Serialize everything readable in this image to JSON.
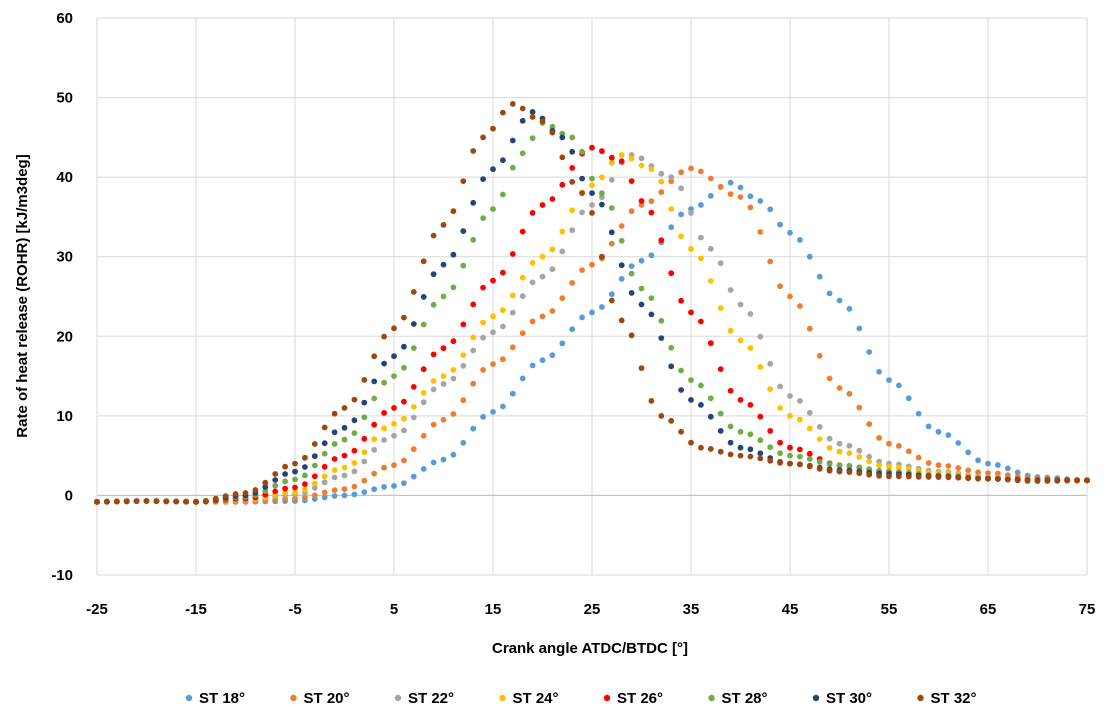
{
  "chart_data": {
    "type": "scatter",
    "title": "",
    "xlabel": "Crank angle ATDC/BTDC [°]",
    "ylabel": "Rate of heat release (ROHR) [kJ/m3deg]",
    "xlim": [
      -25,
      75
    ],
    "ylim": [
      -10,
      60
    ],
    "x_ticks": [
      -25,
      -15,
      -5,
      5,
      15,
      25,
      35,
      45,
      55,
      65,
      75
    ],
    "y_ticks": [
      -10,
      0,
      10,
      20,
      30,
      40,
      50,
      60
    ],
    "grid": "vertical and horizontal",
    "legend_position": "bottom",
    "series": [
      {
        "name": "ST 18°",
        "color": "#5b9bd5",
        "peak_x": 39,
        "peak_y": 39.3,
        "points": [
          [
            -25,
            -0.8
          ],
          [
            -20,
            -0.7
          ],
          [
            -15,
            -0.8
          ],
          [
            -10,
            -0.8
          ],
          [
            -5,
            -0.7
          ],
          [
            0,
            0
          ],
          [
            5,
            1.2
          ],
          [
            10,
            4.5
          ],
          [
            15,
            10.5
          ],
          [
            20,
            17
          ],
          [
            25,
            23
          ],
          [
            30,
            29.5
          ],
          [
            35,
            36
          ],
          [
            39,
            39.3
          ],
          [
            42,
            37
          ],
          [
            45,
            33
          ],
          [
            50,
            24.5
          ],
          [
            55,
            14.5
          ],
          [
            60,
            8
          ],
          [
            65,
            4
          ],
          [
            70,
            2.3
          ],
          [
            75,
            1.9
          ]
        ]
      },
      {
        "name": "ST 20°",
        "color": "#ed7d31",
        "peak_x": 35,
        "peak_y": 41.1,
        "points": [
          [
            -25,
            -0.8
          ],
          [
            -20,
            -0.7
          ],
          [
            -15,
            -0.8
          ],
          [
            -10,
            -0.8
          ],
          [
            -5,
            -0.4
          ],
          [
            0,
            0.8
          ],
          [
            5,
            3.8
          ],
          [
            10,
            9.5
          ],
          [
            15,
            16.5
          ],
          [
            20,
            22.5
          ],
          [
            25,
            29
          ],
          [
            30,
            36.5
          ],
          [
            35,
            41.1
          ],
          [
            40,
            37.5
          ],
          [
            45,
            25
          ],
          [
            50,
            13.5
          ],
          [
            55,
            6.5
          ],
          [
            60,
            3.8
          ],
          [
            65,
            2.8
          ],
          [
            70,
            2.1
          ],
          [
            75,
            1.9
          ]
        ]
      },
      {
        "name": "ST 22°",
        "color": "#a5a5a5",
        "peak_x": 29,
        "peak_y": 42.8,
        "points": [
          [
            -25,
            -0.8
          ],
          [
            -20,
            -0.7
          ],
          [
            -15,
            -0.8
          ],
          [
            -10,
            -0.6
          ],
          [
            -5,
            0.1
          ],
          [
            0,
            2.5
          ],
          [
            5,
            7.5
          ],
          [
            10,
            14
          ],
          [
            15,
            20.5
          ],
          [
            20,
            27.5
          ],
          [
            25,
            36.5
          ],
          [
            29,
            42.8
          ],
          [
            33,
            40
          ],
          [
            37,
            31
          ],
          [
            40,
            24
          ],
          [
            45,
            12.5
          ],
          [
            50,
            6.5
          ],
          [
            55,
            4
          ],
          [
            60,
            3
          ],
          [
            65,
            2.3
          ],
          [
            70,
            1.9
          ],
          [
            75,
            1.9
          ]
        ]
      },
      {
        "name": "ST 24°",
        "color": "#ffc000",
        "peak_x": 28,
        "peak_y": 42.8,
        "points": [
          [
            -25,
            -0.8
          ],
          [
            -20,
            -0.7
          ],
          [
            -15,
            -0.8
          ],
          [
            -10,
            -0.5
          ],
          [
            -5,
            0.4
          ],
          [
            0,
            3.5
          ],
          [
            5,
            9
          ],
          [
            10,
            15
          ],
          [
            15,
            22.5
          ],
          [
            20,
            30
          ],
          [
            25,
            39
          ],
          [
            28,
            42.8
          ],
          [
            31,
            41
          ],
          [
            35,
            31
          ],
          [
            40,
            19.5
          ],
          [
            45,
            10
          ],
          [
            50,
            5.5
          ],
          [
            55,
            3.6
          ],
          [
            60,
            2.8
          ],
          [
            65,
            2.2
          ],
          [
            70,
            1.9
          ],
          [
            75,
            1.9
          ]
        ]
      },
      {
        "name": "ST 26°",
        "color": "#ff0000",
        "peak_x": 25,
        "peak_y": 43.7,
        "points": [
          [
            -25,
            -0.8
          ],
          [
            -20,
            -0.7
          ],
          [
            -15,
            -0.8
          ],
          [
            -10,
            -0.4
          ],
          [
            -5,
            1
          ],
          [
            0,
            5
          ],
          [
            5,
            11
          ],
          [
            10,
            18.5
          ],
          [
            15,
            27
          ],
          [
            20,
            36.5
          ],
          [
            25,
            43.7
          ],
          [
            28,
            42
          ],
          [
            30,
            37
          ],
          [
            35,
            23
          ],
          [
            40,
            12
          ],
          [
            45,
            6
          ],
          [
            50,
            3.8
          ],
          [
            55,
            3
          ],
          [
            60,
            2.5
          ],
          [
            65,
            2.1
          ],
          [
            70,
            1.9
          ],
          [
            75,
            1.9
          ]
        ]
      },
      {
        "name": "ST 28°",
        "color": "#70ad47",
        "peak_x": 20,
        "peak_y": 46.8,
        "points": [
          [
            -25,
            -0.8
          ],
          [
            -20,
            -0.7
          ],
          [
            -15,
            -0.8
          ],
          [
            -10,
            -0.2
          ],
          [
            -5,
            2
          ],
          [
            0,
            7
          ],
          [
            5,
            15
          ],
          [
            10,
            25
          ],
          [
            15,
            36
          ],
          [
            18,
            43
          ],
          [
            20,
            46.8
          ],
          [
            23,
            45
          ],
          [
            26,
            38
          ],
          [
            30,
            26
          ],
          [
            35,
            14.5
          ],
          [
            40,
            8
          ],
          [
            45,
            5
          ],
          [
            50,
            3.8
          ],
          [
            55,
            3
          ],
          [
            60,
            2.5
          ],
          [
            65,
            2.1
          ],
          [
            70,
            1.9
          ],
          [
            75,
            1.9
          ]
        ]
      },
      {
        "name": "ST 30°",
        "color": "#264478",
        "peak_x": 19,
        "peak_y": 48.2,
        "points": [
          [
            -25,
            -0.8
          ],
          [
            -20,
            -0.7
          ],
          [
            -15,
            -0.8
          ],
          [
            -10,
            0
          ],
          [
            -5,
            3
          ],
          [
            0,
            8.5
          ],
          [
            5,
            17.5
          ],
          [
            10,
            29
          ],
          [
            15,
            41
          ],
          [
            19,
            48.2
          ],
          [
            22,
            45
          ],
          [
            25,
            38
          ],
          [
            30,
            24
          ],
          [
            35,
            12
          ],
          [
            40,
            6
          ],
          [
            45,
            4
          ],
          [
            50,
            3.2
          ],
          [
            55,
            2.7
          ],
          [
            60,
            2.4
          ],
          [
            65,
            2.1
          ],
          [
            70,
            1.9
          ],
          [
            75,
            1.9
          ]
        ]
      },
      {
        "name": "ST 32°",
        "color": "#9e480e",
        "peak_x": 17,
        "peak_y": 49.2,
        "points": [
          [
            -25,
            -0.8
          ],
          [
            -20,
            -0.7
          ],
          [
            -15,
            -0.8
          ],
          [
            -10,
            0.3
          ],
          [
            -5,
            4
          ],
          [
            0,
            11
          ],
          [
            5,
            21
          ],
          [
            10,
            34
          ],
          [
            14,
            45
          ],
          [
            17,
            49.2
          ],
          [
            20,
            47
          ],
          [
            24,
            38
          ],
          [
            28,
            22
          ],
          [
            32,
            10
          ],
          [
            36,
            6
          ],
          [
            40,
            5
          ],
          [
            45,
            4
          ],
          [
            50,
            3
          ],
          [
            55,
            2.4
          ],
          [
            60,
            2.3
          ],
          [
            65,
            2.1
          ],
          [
            70,
            1.8
          ],
          [
            75,
            1.9
          ]
        ]
      }
    ]
  }
}
